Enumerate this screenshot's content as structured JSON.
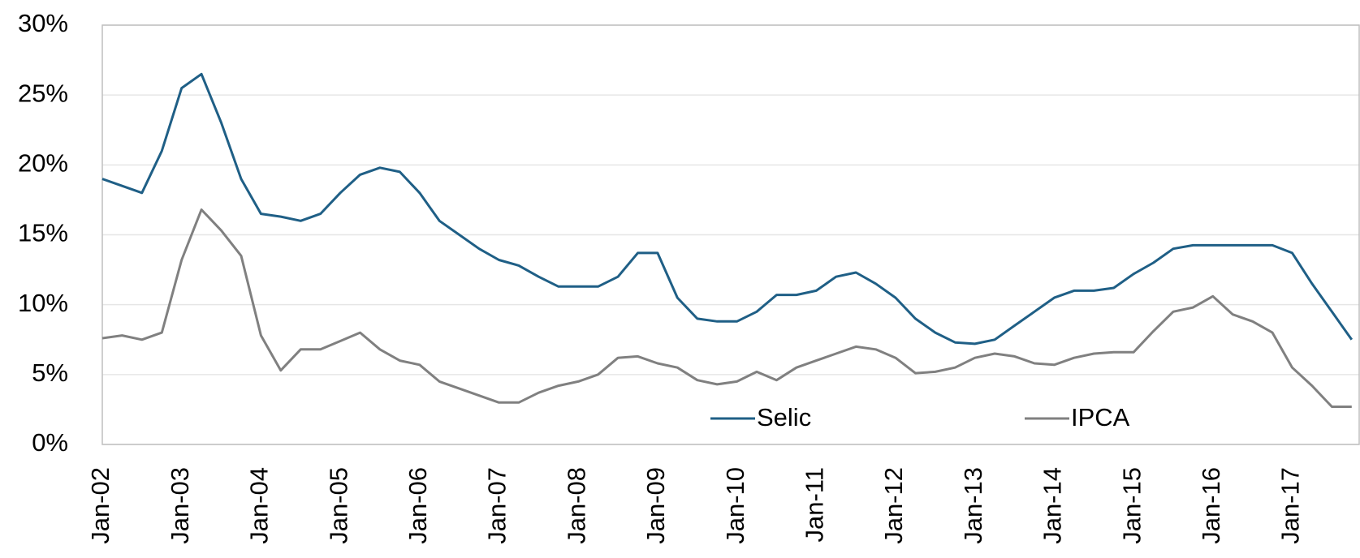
{
  "chart_data": {
    "type": "line",
    "categories": [
      "Jan-02",
      null,
      null,
      null,
      "Jan-03",
      null,
      null,
      null,
      "Jan-04",
      null,
      null,
      null,
      "Jan-05",
      null,
      null,
      null,
      "Jan-06",
      null,
      null,
      null,
      "Jan-07",
      null,
      null,
      null,
      "Jan-08",
      null,
      null,
      null,
      "Jan-09",
      null,
      null,
      null,
      "Jan-10",
      null,
      null,
      null,
      "Jan-11",
      null,
      null,
      null,
      "Jan-12",
      null,
      null,
      null,
      "Jan-13",
      null,
      null,
      null,
      "Jan-14",
      null,
      null,
      null,
      "Jan-15",
      null,
      null,
      null,
      "Jan-16",
      null,
      null,
      null,
      "Jan-17",
      null,
      null,
      null
    ],
    "series": [
      {
        "name": "Selic",
        "color": "#1f5f86",
        "values": [
          19.0,
          18.5,
          18.0,
          21.0,
          25.5,
          26.5,
          23.0,
          19.0,
          16.5,
          16.3,
          16.0,
          16.5,
          18.0,
          19.3,
          19.8,
          19.5,
          18.0,
          16.0,
          15.0,
          14.0,
          13.2,
          12.8,
          12.0,
          11.3,
          11.3,
          11.3,
          12.0,
          13.7,
          13.7,
          10.5,
          9.0,
          8.8,
          8.8,
          9.5,
          10.7,
          10.7,
          11.0,
          12.0,
          12.3,
          11.5,
          10.5,
          9.0,
          8.0,
          7.3,
          7.2,
          7.5,
          8.5,
          9.5,
          10.5,
          11.0,
          11.0,
          11.2,
          12.2,
          13.0,
          14.0,
          14.25,
          14.25,
          14.25,
          14.25,
          14.25,
          13.7,
          11.5,
          9.5,
          7.5
        ]
      },
      {
        "name": "IPCA",
        "color": "#808080",
        "values": [
          7.6,
          7.8,
          7.5,
          8.0,
          13.2,
          16.8,
          15.3,
          13.5,
          7.8,
          5.3,
          6.8,
          6.8,
          7.4,
          8.0,
          6.8,
          6.0,
          5.7,
          4.5,
          4.0,
          3.5,
          3.0,
          3.0,
          3.7,
          4.2,
          4.5,
          5.0,
          6.2,
          6.3,
          5.8,
          5.5,
          4.6,
          4.3,
          4.5,
          5.2,
          4.6,
          5.5,
          6.0,
          6.5,
          7.0,
          6.8,
          6.2,
          5.1,
          5.2,
          5.5,
          6.2,
          6.5,
          6.3,
          5.8,
          5.7,
          6.2,
          6.5,
          6.6,
          6.6,
          8.1,
          9.5,
          9.8,
          10.6,
          9.3,
          8.8,
          8.0,
          5.5,
          4.2,
          2.7,
          2.7
        ]
      }
    ],
    "ylim": [
      0,
      30
    ],
    "yticks": [
      {
        "value": 0,
        "label": "0%"
      },
      {
        "value": 5,
        "label": "5%"
      },
      {
        "value": 10,
        "label": "10%"
      },
      {
        "value": 15,
        "label": "15%"
      },
      {
        "value": 20,
        "label": "20%"
      },
      {
        "value": 25,
        "label": "25%"
      },
      {
        "value": 30,
        "label": "30%"
      }
    ],
    "grid": true
  }
}
